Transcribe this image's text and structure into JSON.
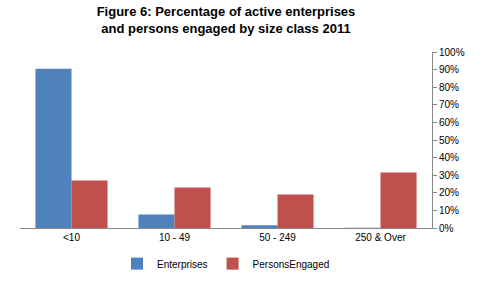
{
  "chart_data": {
    "type": "bar",
    "title": "Figure 6: Percentage of active enterprises and persons engaged by size class 2011",
    "categories": [
      "<10",
      "10 - 49",
      "50 - 249",
      "250 & Over"
    ],
    "series": [
      {
        "name": "Enterprises",
        "color": "#4f81bd",
        "values": [
          90.5,
          7.7,
          1.5,
          0.2
        ]
      },
      {
        "name": "PersonsEngaged",
        "color": "#c0504d",
        "values": [
          27,
          23,
          19,
          31.5
        ]
      }
    ],
    "ylim": [
      0,
      100
    ],
    "yticks": [
      {
        "value": 0,
        "label": "0%"
      },
      {
        "value": 10,
        "label": "10%"
      },
      {
        "value": 20,
        "label": "20%"
      },
      {
        "value": 30,
        "label": "30%"
      },
      {
        "value": 40,
        "label": "40%"
      },
      {
        "value": 50,
        "label": "50%"
      },
      {
        "value": 60,
        "label": "60%"
      },
      {
        "value": 70,
        "label": "70%"
      },
      {
        "value": 80,
        "label": "80%"
      },
      {
        "value": 90,
        "label": "90%"
      },
      {
        "value": 100,
        "label": "100%"
      }
    ],
    "grid": false,
    "legend": "bottom"
  }
}
